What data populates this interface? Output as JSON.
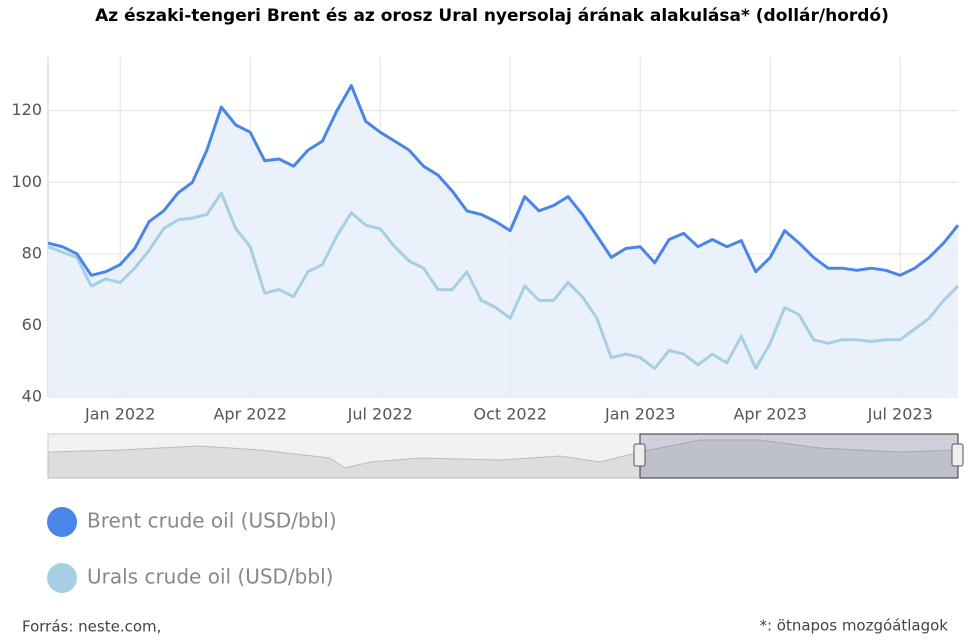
{
  "chart_data": {
    "type": "line",
    "title": "Az északi-tengeri Brent és az orosz Ural nyersolaj árának alakulása* (dollár/hordó)",
    "categories": [
      null,
      null,
      null,
      null,
      null,
      "Jan 2022",
      null,
      null,
      null,
      null,
      null,
      null,
      null,
      null,
      "Apr 2022",
      null,
      null,
      null,
      null,
      null,
      null,
      null,
      null,
      "Jul 2022",
      null,
      null,
      null,
      null,
      null,
      null,
      null,
      null,
      "Oct 2022",
      null,
      null,
      null,
      null,
      null,
      null,
      null,
      null,
      "Jan 2023",
      null,
      null,
      null,
      null,
      null,
      null,
      null,
      null,
      "Apr 2023",
      null,
      null,
      null,
      null,
      null,
      null,
      null,
      null,
      "Jul 2023",
      null,
      null,
      null,
      null
    ],
    "series": [
      {
        "name": "Brent crude oil (USD/bbl)",
        "color": "#4a86e8",
        "fill": "#e6eefa",
        "values": [
          83,
          82,
          80,
          74,
          75,
          77,
          81.5,
          89,
          92,
          97,
          100,
          109,
          121,
          116,
          114,
          106,
          106.5,
          104.5,
          109,
          111.5,
          120,
          127,
          117,
          114,
          111.5,
          109,
          104.5,
          102,
          97.5,
          92,
          91,
          89,
          86.5,
          96,
          92,
          93.5,
          96,
          91,
          85,
          79,
          81.5,
          82,
          77.5,
          84,
          85.7,
          82,
          84,
          82,
          83.7,
          75,
          79,
          86.5,
          83,
          79,
          76,
          76,
          75.4,
          76,
          75.4,
          74,
          76,
          79,
          83,
          88
        ]
      },
      {
        "name": "Urals crude oil (USD/bbl)",
        "color": "#a6cfe3",
        "values": [
          82,
          80.5,
          79,
          71,
          73,
          72,
          76,
          81,
          87,
          89.5,
          90,
          91,
          97,
          87,
          82,
          69,
          70,
          68,
          75,
          77,
          85,
          91.5,
          88,
          87,
          82,
          78,
          76,
          70,
          70,
          75,
          67,
          65,
          62,
          71,
          67,
          67,
          72,
          68,
          62,
          51,
          52,
          51,
          48,
          53,
          52,
          49,
          52,
          49.5,
          57,
          48,
          55,
          65,
          63,
          56,
          55,
          56,
          56,
          55.5,
          56,
          56,
          59,
          62,
          67,
          71
        ]
      }
    ],
    "ylim": [
      40,
      135
    ],
    "yticks": [
      40,
      60,
      80,
      100,
      120
    ],
    "grid": true,
    "legend": "bottom",
    "source": "Forrás: neste.com,",
    "note": "*: ötnapos mozgóátlagok"
  }
}
